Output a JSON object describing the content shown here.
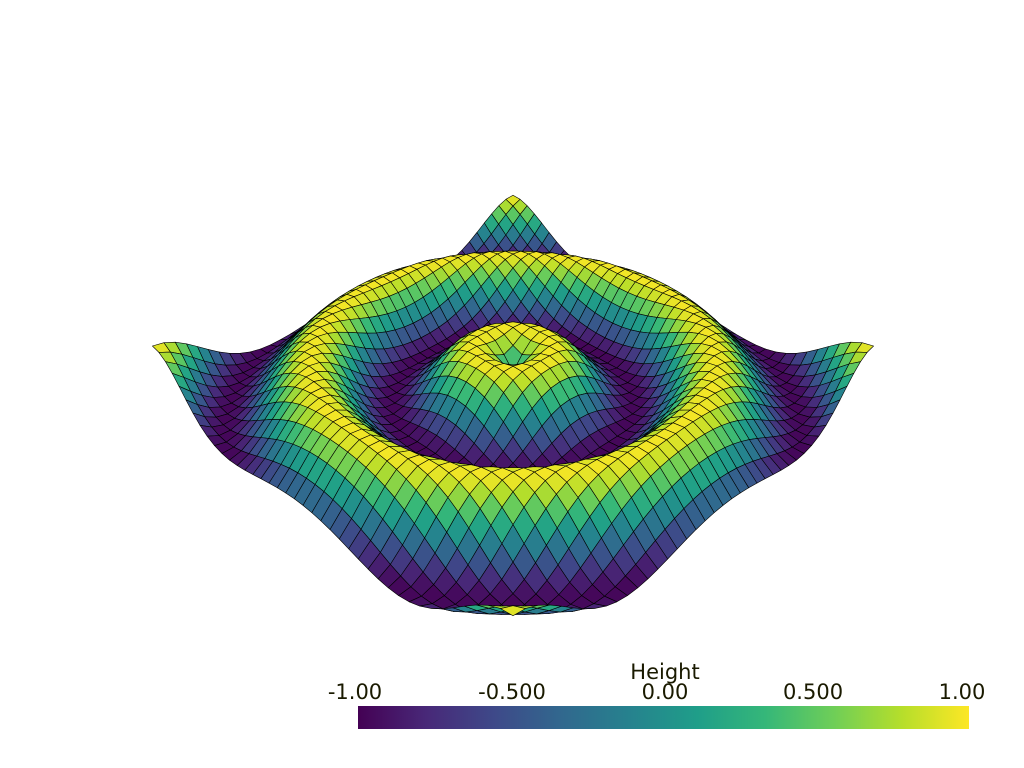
{
  "chart_data": {
    "type": "surface",
    "colormap": "viridis",
    "colorbar": {
      "title": "Height",
      "range": [
        -1.0,
        1.0
      ],
      "ticks": [
        {
          "value": -1.0,
          "label": "-1.00"
        },
        {
          "value": -0.5,
          "label": "-0.500"
        },
        {
          "value": 0.0,
          "label": "0.00"
        },
        {
          "value": 0.5,
          "label": "0.500"
        },
        {
          "value": 1.0,
          "label": "1.00"
        }
      ],
      "placement": "bottom-right"
    },
    "show_edges": true,
    "edge_color": "#000000",
    "background": "#ffffff",
    "colors": [
      "#440154",
      "#482878",
      "#3e4989",
      "#31688e",
      "#26828e",
      "#1f9e89",
      "#35b779",
      "#6ece58",
      "#b5de2b",
      "#fde725"
    ]
  }
}
